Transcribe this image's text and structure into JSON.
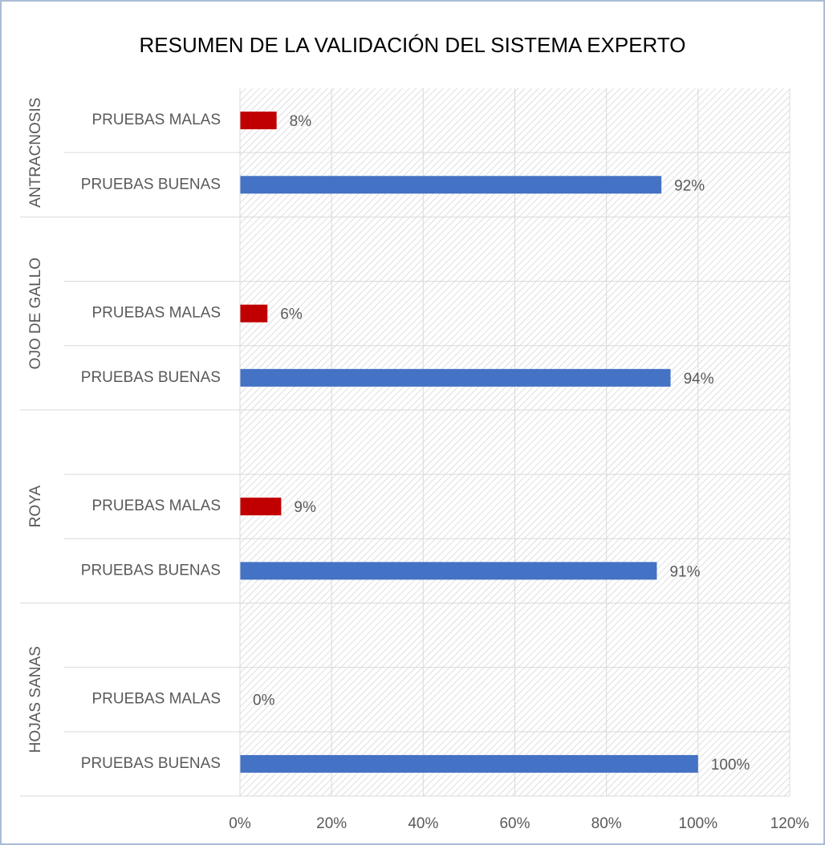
{
  "chart_data": {
    "type": "bar",
    "orientation": "horizontal",
    "title": "RESUMEN DE LA VALIDACIÓN DEL SISTEMA EXPERTO",
    "groups": [
      {
        "name": "ANTRACNOSIS",
        "categories": [
          "PRUEBAS MALAS",
          "PRUEBAS BUENAS"
        ],
        "values": [
          8,
          92
        ],
        "value_labels": [
          "8%",
          "92%"
        ],
        "colors": [
          "#c00000",
          "#4472c4"
        ]
      },
      {
        "name": "OJO DE GALLO",
        "categories": [
          null,
          "PRUEBAS MALAS",
          "PRUEBAS BUENAS"
        ],
        "values": [
          null,
          6,
          94
        ],
        "value_labels": [
          null,
          "6%",
          "94%"
        ],
        "colors": [
          null,
          "#c00000",
          "#4472c4"
        ]
      },
      {
        "name": "ROYA",
        "categories": [
          null,
          "PRUEBAS MALAS",
          "PRUEBAS BUENAS"
        ],
        "values": [
          null,
          9,
          91
        ],
        "value_labels": [
          null,
          "9%",
          "91%"
        ],
        "colors": [
          null,
          "#c00000",
          "#4472c4"
        ]
      },
      {
        "name": "HOJAS SANAS",
        "categories": [
          null,
          "PRUEBAS MALAS",
          "PRUEBAS BUENAS"
        ],
        "values": [
          null,
          0,
          100
        ],
        "value_labels": [
          null,
          "0%",
          "100%"
        ],
        "colors": [
          null,
          "#c00000",
          "#4472c4"
        ]
      }
    ],
    "xlim": [
      0,
      120
    ],
    "xticks": [
      {
        "value": 0,
        "label": "0%"
      },
      {
        "value": 20,
        "label": "20%"
      },
      {
        "value": 40,
        "label": "40%"
      },
      {
        "value": 60,
        "label": "60%"
      },
      {
        "value": 80,
        "label": "80%"
      },
      {
        "value": 100,
        "label": "100%"
      },
      {
        "value": 120,
        "label": "120%"
      }
    ],
    "grid": true
  }
}
